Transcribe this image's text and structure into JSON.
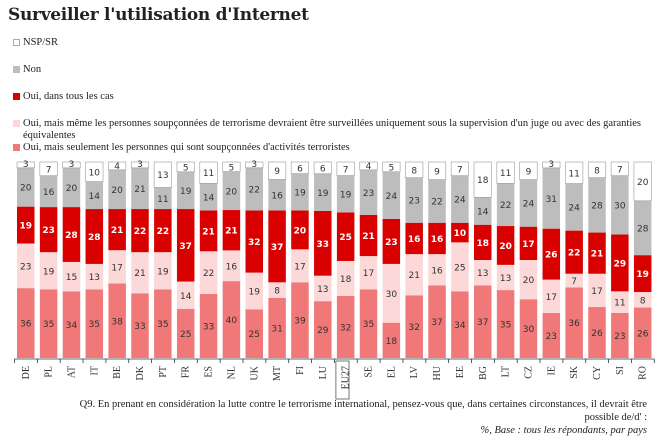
{
  "chart_data": {
    "type": "bar",
    "stacked": true,
    "title": "Surveiller l'utilisation d'Internet",
    "xlabel": "",
    "ylabel": "",
    "ylim": [
      0,
      100
    ],
    "legend_placement": "top-left",
    "categories": [
      "DE",
      "PL",
      "AT",
      "IT",
      "BE",
      "DK",
      "PT",
      "FR",
      "ES",
      "NL",
      "UK",
      "MT",
      "FI",
      "LU",
      "EU27",
      "SE",
      "EL",
      "LV",
      "HU",
      "EE",
      "BG",
      "LT",
      "CZ",
      "IE",
      "SK",
      "CY",
      "SI",
      "RO"
    ],
    "highlighted_category": "EU27",
    "series": [
      {
        "name": "Oui, mais seulement les personnes qui sont soupçonnées d'activités terroristes",
        "color": "#f07878",
        "label_color": "#333333",
        "values": [
          36,
          35,
          34,
          35,
          38,
          33,
          35,
          25,
          33,
          40,
          25,
          31,
          39,
          29,
          32,
          35,
          18,
          32,
          37,
          34,
          37,
          35,
          30,
          23,
          36,
          26,
          23,
          26
        ]
      },
      {
        "name": "Oui, mais même les personnes soupçonnées de terrorisme  devraient  être surveillées uniquement sous la supervision d'un juge ou avec des garanties équivalentes",
        "color": "#fcd8d8",
        "label_color": "#333333",
        "values": [
          23,
          19,
          15,
          13,
          17,
          21,
          19,
          14,
          22,
          16,
          19,
          8,
          17,
          13,
          18,
          17,
          30,
          21,
          16,
          25,
          13,
          13,
          20,
          17,
          7,
          17,
          11,
          8
        ]
      },
      {
        "name": "Oui, dans tous les cas",
        "color": "#d90000",
        "label_color": "#ffffff",
        "values": [
          19,
          23,
          28,
          28,
          21,
          22,
          22,
          37,
          21,
          21,
          32,
          37,
          20,
          33,
          25,
          21,
          23,
          16,
          16,
          10,
          18,
          20,
          17,
          26,
          22,
          21,
          29,
          19
        ]
      },
      {
        "name": "Non",
        "color": "#bdbdbd",
        "label_color": "#333333",
        "values": [
          20,
          16,
          20,
          14,
          20,
          21,
          11,
          19,
          14,
          20,
          22,
          16,
          19,
          19,
          19,
          23,
          24,
          23,
          22,
          24,
          14,
          22,
          24,
          31,
          24,
          28,
          30,
          28
        ]
      },
      {
        "name": "NSP/SR",
        "color": "#ffffff",
        "label_color": "#333333",
        "values": [
          3,
          7,
          3,
          10,
          4,
          3,
          13,
          5,
          11,
          5,
          3,
          9,
          6,
          6,
          7,
          4,
          5,
          8,
          9,
          7,
          18,
          11,
          9,
          3,
          11,
          8,
          7,
          20
        ]
      }
    ]
  },
  "legend": [
    {
      "label": "NSP/SR",
      "color": "#ffffff"
    },
    {
      "label": "Non",
      "color": "#bdbdbd"
    },
    {
      "label": "Oui, dans tous les cas",
      "color": "#d90000"
    },
    {
      "label": "Oui, mais même les personnes soupçonnées de terrorisme  devraient  être surveillées uniquement sous la supervision d'un juge ou avec des garanties équivalentes",
      "color": "#fcd8d8"
    },
    {
      "label": "Oui, mais seulement les personnes qui sont soupçonnées d'activités terroristes",
      "color": "#f07878"
    }
  ],
  "footnote": {
    "question": "Q9.  En prenant en considération la lutte contre le terrorisme international, pensez-vous que, dans certaines circonstances, il devrait être possible de/d' :",
    "base": "%, Base : tous les répondants, par pays"
  }
}
